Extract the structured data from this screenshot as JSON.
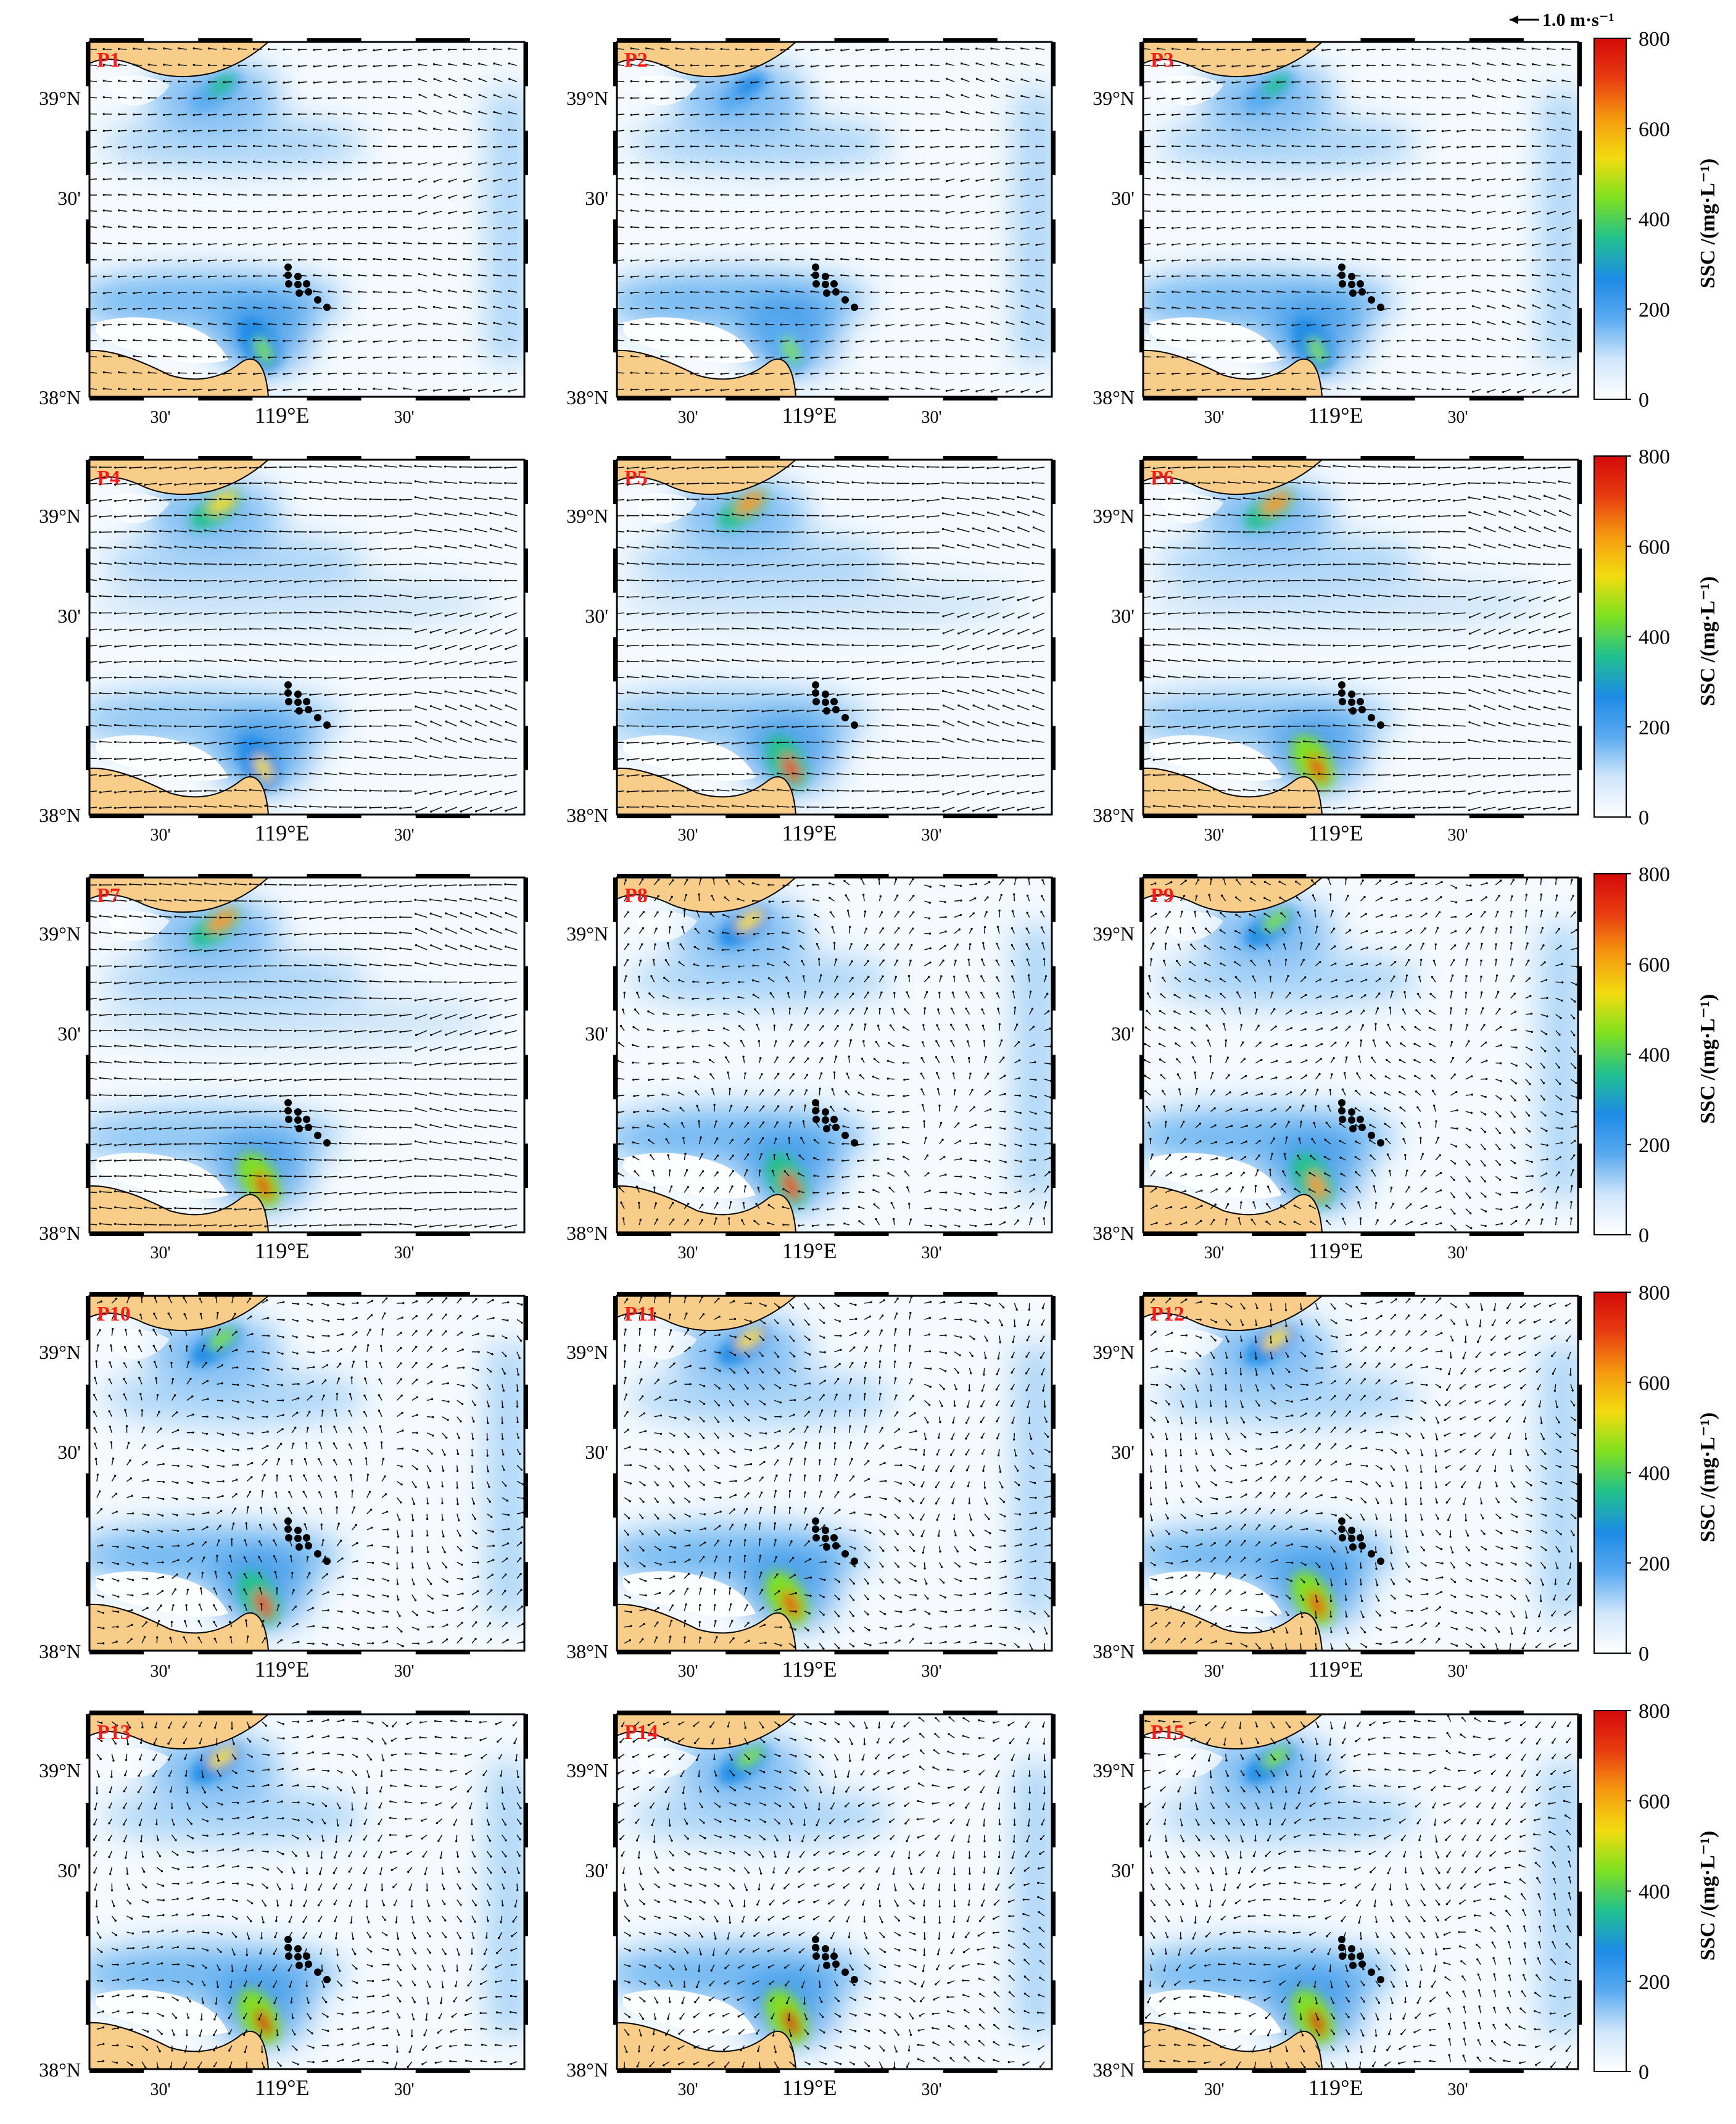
{
  "figure": {
    "type": "map-panels",
    "panels": [
      "P1",
      "P2",
      "P3",
      "P4",
      "P5",
      "P6",
      "P7",
      "P8",
      "P9",
      "P10",
      "P11",
      "P12",
      "P13",
      "P14",
      "P15"
    ],
    "lat_labels": [
      "39°N",
      "30'",
      "38°N"
    ],
    "lon_labels": [
      "30'",
      "119°E",
      "30'"
    ],
    "vector_scale_label": "1.0 m·s⁻¹",
    "colorbar": {
      "label": "SSC /(mg·L⁻¹)",
      "ticks": [
        "800",
        "600",
        "400",
        "200",
        "0"
      ],
      "range": [
        0,
        800
      ],
      "colors": [
        "#ffffff",
        "#cfe6fb",
        "#5aaaf0",
        "#1e8be6",
        "#20c090",
        "#7ee020",
        "#f2dc10",
        "#f59a10",
        "#e83c10",
        "#d40a0a"
      ]
    },
    "land_color": "#f8cd8a",
    "panel_label_color": "#ff1a1a"
  },
  "chart_data": {
    "type": "heatmap",
    "variable": "SSC",
    "units": "mg·L⁻¹",
    "color_range": [
      0,
      800
    ],
    "panels": [
      {
        "label": "P1",
        "hotspots": [
          {
            "name": "north",
            "ssc": 350
          },
          {
            "name": "south",
            "ssc": 450
          }
        ],
        "vector_strength": "moderate"
      },
      {
        "label": "P2",
        "hotspots": [
          {
            "name": "north",
            "ssc": 300
          },
          {
            "name": "south",
            "ssc": 400
          }
        ],
        "vector_strength": "moderate"
      },
      {
        "label": "P3",
        "hotspots": [
          {
            "name": "north",
            "ssc": 350
          },
          {
            "name": "south",
            "ssc": 450
          }
        ],
        "vector_strength": "moderate"
      },
      {
        "label": "P4",
        "hotspots": [
          {
            "name": "north",
            "ssc": 550
          },
          {
            "name": "south",
            "ssc": 550
          }
        ],
        "vector_strength": "strong"
      },
      {
        "label": "P5",
        "hotspots": [
          {
            "name": "north",
            "ssc": 650
          },
          {
            "name": "south",
            "ssc": 700
          }
        ],
        "vector_strength": "strong"
      },
      {
        "label": "P6",
        "hotspots": [
          {
            "name": "north",
            "ssc": 600
          },
          {
            "name": "south",
            "ssc": 750
          }
        ],
        "vector_strength": "strong"
      },
      {
        "label": "P7",
        "hotspots": [
          {
            "name": "north",
            "ssc": 650
          },
          {
            "name": "south",
            "ssc": 750
          }
        ],
        "vector_strength": "strong"
      },
      {
        "label": "P8",
        "hotspots": [
          {
            "name": "north",
            "ssc": 500
          },
          {
            "name": "south",
            "ssc": 700
          }
        ],
        "vector_strength": "weak"
      },
      {
        "label": "P9",
        "hotspots": [
          {
            "name": "north",
            "ssc": 450
          },
          {
            "name": "south",
            "ssc": 600
          }
        ],
        "vector_strength": "weak"
      },
      {
        "label": "P10",
        "hotspots": [
          {
            "name": "north",
            "ssc": 450
          },
          {
            "name": "south",
            "ssc": 700
          }
        ],
        "vector_strength": "weak"
      },
      {
        "label": "P11",
        "hotspots": [
          {
            "name": "north",
            "ssc": 500
          },
          {
            "name": "south",
            "ssc": 750
          }
        ],
        "vector_strength": "weak"
      },
      {
        "label": "P12",
        "hotspots": [
          {
            "name": "north",
            "ssc": 500
          },
          {
            "name": "south",
            "ssc": 750
          }
        ],
        "vector_strength": "weak"
      },
      {
        "label": "P13",
        "hotspots": [
          {
            "name": "north",
            "ssc": 500
          },
          {
            "name": "south",
            "ssc": 780
          }
        ],
        "vector_strength": "weak"
      },
      {
        "label": "P14",
        "hotspots": [
          {
            "name": "north",
            "ssc": 450
          },
          {
            "name": "south",
            "ssc": 780
          }
        ],
        "vector_strength": "weak"
      },
      {
        "label": "P15",
        "hotspots": [
          {
            "name": "north",
            "ssc": 450
          },
          {
            "name": "south",
            "ssc": 780
          }
        ],
        "vector_strength": "weak"
      }
    ]
  }
}
